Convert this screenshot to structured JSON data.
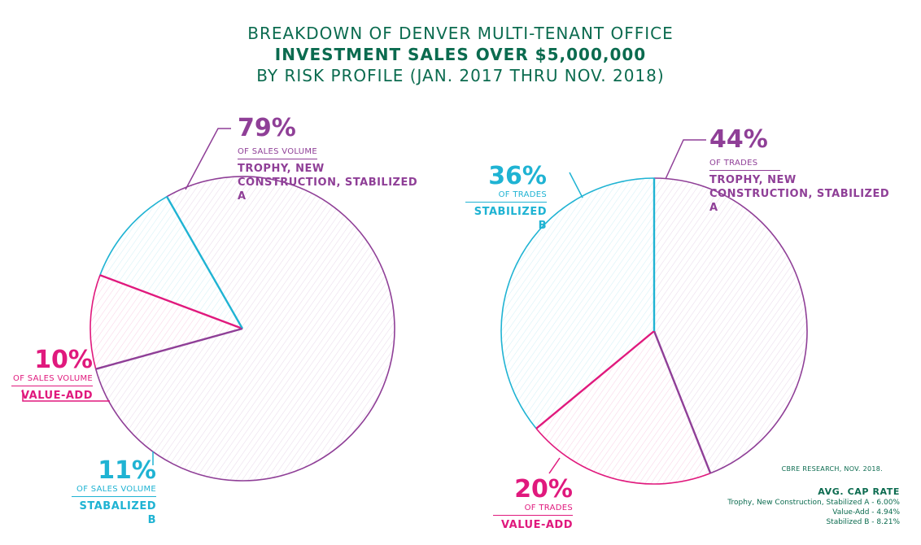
{
  "title": {
    "line1": "BREAKDOWN OF DENVER MULTI-TENANT OFFICE",
    "line2": "INVESTMENT SALES OVER $5,000,000",
    "line3": "BY RISK PROFILE (JAN. 2017 THRU NOV. 2018)"
  },
  "colors": {
    "title": "#0b6b4f",
    "trophy": "#8f3f97",
    "value_add": "#e0197d",
    "stabilized_b": "#1fb3d3"
  },
  "chart_data": [
    {
      "type": "pie",
      "name": "sales-volume",
      "slices": [
        {
          "label": "TROPHY, NEW CONSTRUCTION, STABILIZED A",
          "value": 79,
          "value_text": "79%",
          "measure": "OF SALES VOLUME",
          "color": "#8f3f97"
        },
        {
          "label": "VALUE-ADD",
          "value": 10,
          "value_text": "10%",
          "measure": "OF SALES VOLUME",
          "color": "#e0197d"
        },
        {
          "label": "STABALIZED B",
          "value": 11,
          "value_text": "11%",
          "measure": "OF SALES VOLUME",
          "color": "#1fb3d3"
        }
      ]
    },
    {
      "type": "pie",
      "name": "trades",
      "slices": [
        {
          "label": "TROPHY, NEW CONSTRUCTION, STABILIZED A",
          "value": 44,
          "value_text": "44%",
          "measure": "OF TRADES",
          "color": "#8f3f97"
        },
        {
          "label": "VALUE-ADD",
          "value": 20,
          "value_text": "20%",
          "measure": "OF TRADES",
          "color": "#e0197d"
        },
        {
          "label": "STABILIZED B",
          "value": 36,
          "value_text": "36%",
          "measure": "OF TRADES",
          "color": "#1fb3d3"
        }
      ]
    }
  ],
  "source": "CBRE RESEARCH, NOV. 2018.",
  "cap_rate": {
    "title": "AVG. CAP RATE",
    "rows": [
      "Trophy, New Construction, Stabilized A - 6.00%",
      "Value-Add - 4.94%",
      "Stabilized B - 8.21%"
    ]
  }
}
